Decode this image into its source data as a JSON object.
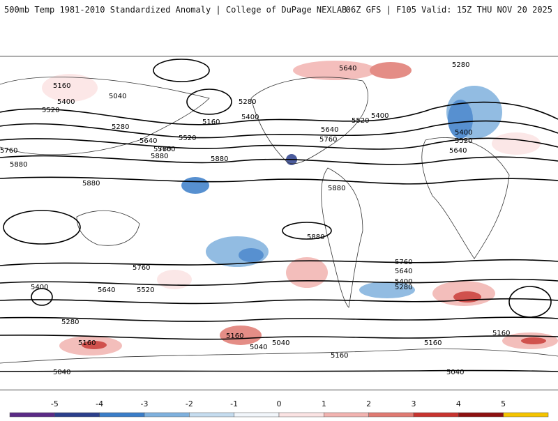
{
  "header": {
    "left": "500mb Temp 1981-2010 Standardized Anomaly | College of DuPage NEXLAB",
    "right": "06Z GFS | F105 Valid: 15Z THU NOV 20 2025"
  },
  "map": {
    "contour_labels": [
      "5160",
      "5040",
      "5400",
      "5520",
      "5280",
      "5640",
      "5760",
      "5880",
      "5160",
      "5280",
      "5400",
      "5520",
      "5640",
      "5760",
      "5880",
      "5880",
      "5880",
      "5760",
      "5640",
      "5400",
      "5520",
      "5880",
      "5760",
      "5640",
      "5400",
      "5280",
      "5520",
      "5160",
      "5040",
      "5040",
      "5160",
      "5160",
      "5400",
      "5280",
      "5640",
      "5760",
      "5160",
      "5040",
      "5040",
      "5160",
      "5880",
      "5760",
      "5640",
      "5520",
      "5400",
      "5280"
    ],
    "anomaly_positive_color": "#d9534f",
    "anomaly_negative_color": "#3a7dc8"
  },
  "colorbar": {
    "labels": [
      "-5",
      "-4",
      "-3",
      "-2",
      "-1",
      "0",
      "1",
      "2",
      "3",
      "4",
      "5"
    ],
    "colors": [
      "#5b2a86",
      "#2b3f8c",
      "#3a7dc8",
      "#7fb1de",
      "#c5dcef",
      "#f2f6fb",
      "#fbe3e3",
      "#f2b3b0",
      "#e07a72",
      "#c8332f",
      "#8e1111",
      "#f5c400"
    ]
  }
}
